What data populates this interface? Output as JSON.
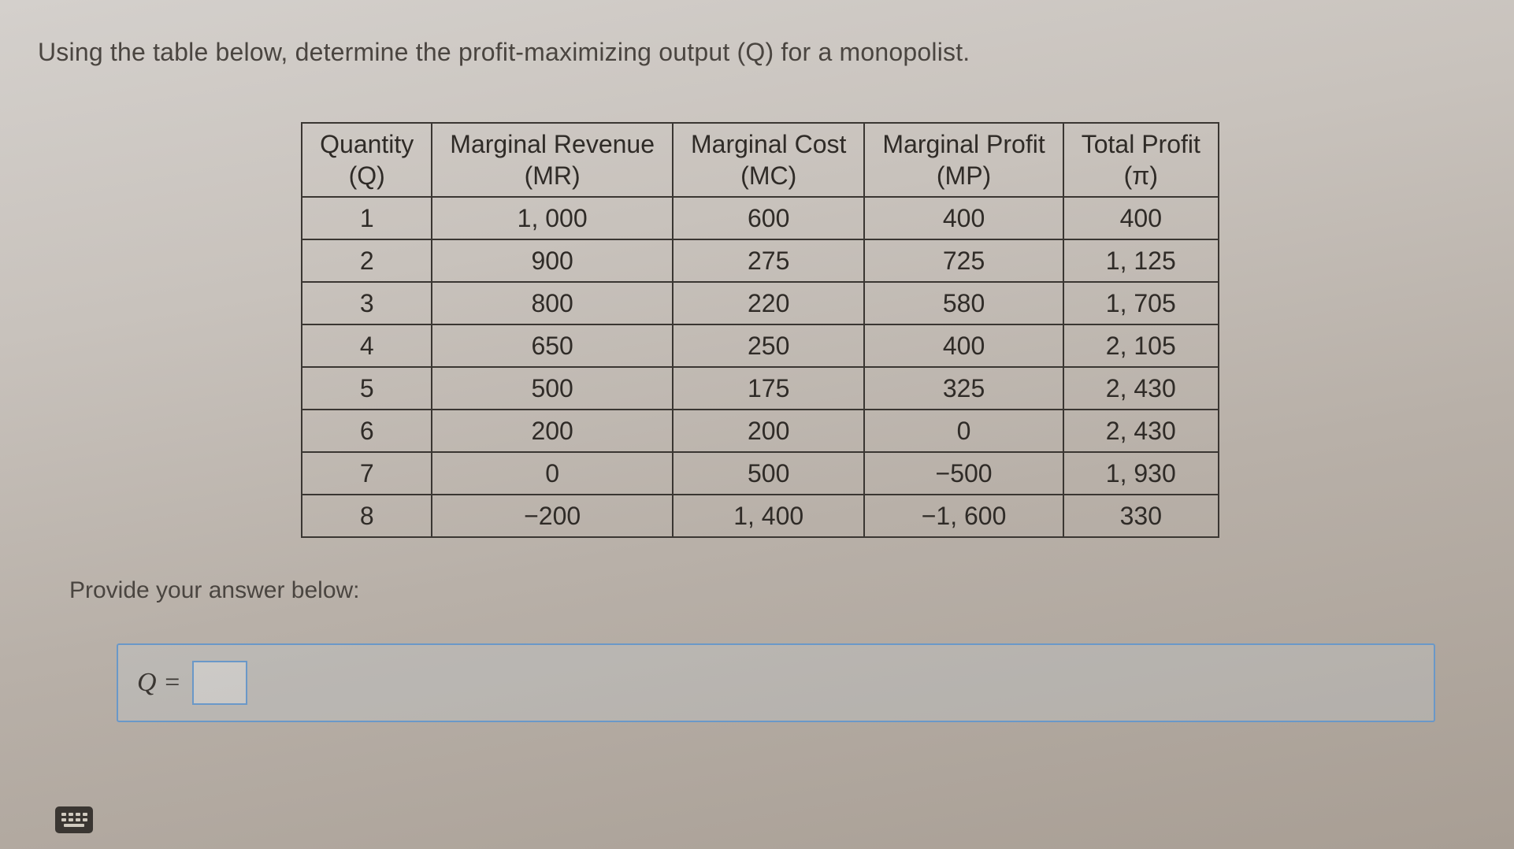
{
  "question_text": "Using the table below, determine the profit-maximizing output (Q) for a monopolist.",
  "table": {
    "columns": [
      {
        "title": "Quantity",
        "sub": "(Q)"
      },
      {
        "title": "Marginal Revenue",
        "sub": "(MR)"
      },
      {
        "title": "Marginal Cost",
        "sub": "(MC)"
      },
      {
        "title": "Marginal Profit",
        "sub": "(MP)"
      },
      {
        "title": "Total Profit",
        "sub": "(π)"
      }
    ],
    "rows": [
      [
        "1",
        "1, 000",
        "600",
        "400",
        "400"
      ],
      [
        "2",
        "900",
        "275",
        "725",
        "1, 125"
      ],
      [
        "3",
        "800",
        "220",
        "580",
        "1, 705"
      ],
      [
        "4",
        "650",
        "250",
        "400",
        "2, 105"
      ],
      [
        "5",
        "500",
        "175",
        "325",
        "2, 430"
      ],
      [
        "6",
        "200",
        "200",
        "0",
        "2, 430"
      ],
      [
        "7",
        "0",
        "500",
        "−500",
        "1, 930"
      ],
      [
        "8",
        "−200",
        "1, 400",
        "−1, 600",
        "330"
      ]
    ],
    "border_color": "#3a3632",
    "font_size": 32,
    "cell_padding": "6px 22px"
  },
  "answer": {
    "label": "Provide your answer below:",
    "prefix": "Q =",
    "value": "",
    "placeholder": ""
  },
  "colors": {
    "text": "#3a3632",
    "bg_top": "#d4d0cc",
    "bg_bot": "#a89e94",
    "input_border": "#6a98c8"
  }
}
